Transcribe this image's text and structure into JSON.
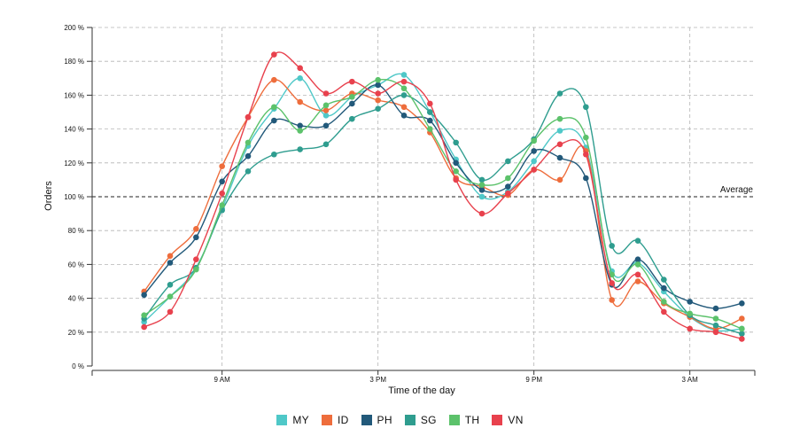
{
  "chart_data": {
    "type": "line",
    "title": "",
    "xlabel": "Time of the day",
    "ylabel": "Orders",
    "x": [
      6,
      7,
      8,
      9,
      10,
      11,
      12,
      13,
      14,
      15,
      16,
      17,
      18,
      19,
      20,
      21,
      22,
      23,
      24,
      25,
      26,
      27,
      28,
      29
    ],
    "xlim": [
      4,
      29.5
    ],
    "xticks": [
      9,
      15,
      21,
      27
    ],
    "xtick_labels": [
      "9 AM",
      "3 PM",
      "9 PM",
      "3 AM"
    ],
    "ylim": [
      0,
      200
    ],
    "yticks": [
      0,
      20,
      40,
      60,
      80,
      100,
      120,
      140,
      160,
      180,
      200
    ],
    "ytick_labels": [
      "0 %",
      "20 %",
      "40 %",
      "60 %",
      "80 %",
      "100 %",
      "120 %",
      "140 %",
      "160 %",
      "180 %",
      "200 %"
    ],
    "grid": true,
    "reference_line": {
      "value": 100,
      "label": "Average"
    },
    "legend_position": "bottom",
    "series": [
      {
        "name": "MY",
        "color": "#4fc8c8",
        "values": [
          26,
          41,
          58,
          93,
          130,
          152,
          170,
          148,
          159,
          166,
          172,
          150,
          122,
          100,
          103,
          121,
          139,
          129,
          56,
          61,
          44,
          29,
          21,
          22
        ]
      },
      {
        "name": "ID",
        "color": "#ee6d3c",
        "values": [
          44,
          65,
          81,
          118,
          147,
          169,
          156,
          151,
          161,
          157,
          153,
          138,
          111,
          106,
          101,
          116,
          110,
          127,
          39,
          50,
          37,
          29,
          22,
          28
        ]
      },
      {
        "name": "PH",
        "color": "#22597a",
        "values": [
          42,
          61,
          76,
          109,
          124,
          145,
          142,
          142,
          155,
          166,
          148,
          145,
          120,
          104,
          106,
          127,
          123,
          111,
          48,
          63,
          46,
          38,
          34,
          37
        ]
      },
      {
        "name": "SG",
        "color": "#2f9d8f",
        "values": [
          28,
          48,
          58,
          92,
          115,
          125,
          128,
          131,
          146,
          152,
          160,
          150,
          132,
          110,
          121,
          134,
          161,
          153,
          71,
          74,
          51,
          30,
          24,
          19
        ]
      },
      {
        "name": "TH",
        "color": "#5cc26b",
        "values": [
          30,
          41,
          57,
          95,
          132,
          153,
          139,
          154,
          159,
          169,
          164,
          140,
          115,
          107,
          111,
          133,
          146,
          135,
          54,
          60,
          38,
          31,
          28,
          22
        ]
      },
      {
        "name": "VN",
        "color": "#e8414d",
        "values": [
          23,
          32,
          63,
          102,
          147,
          184,
          176,
          161,
          168,
          161,
          168,
          155,
          110,
          90,
          102,
          116,
          131,
          125,
          49,
          54,
          32,
          22,
          20,
          16
        ]
      }
    ]
  }
}
